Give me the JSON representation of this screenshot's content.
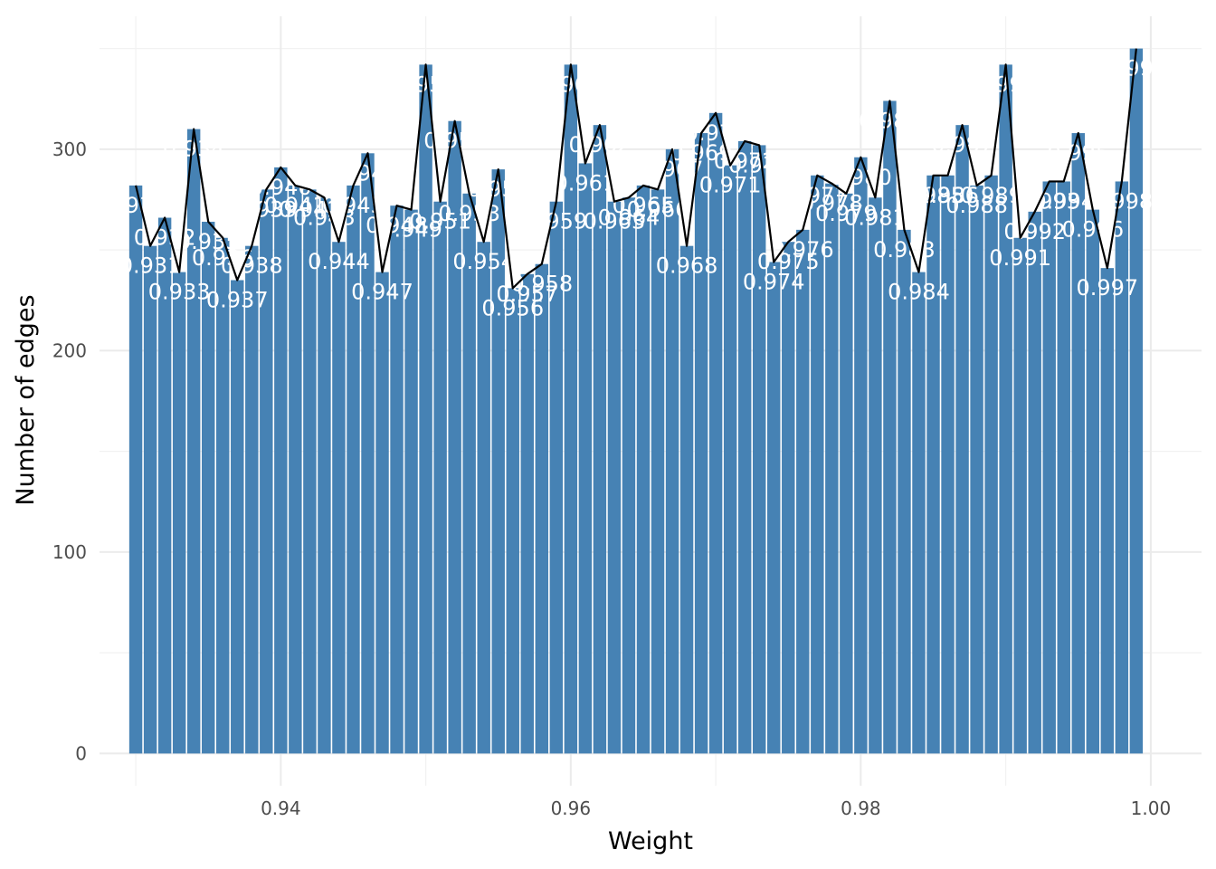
{
  "chart_data": {
    "type": "bar",
    "xlabel": "Weight",
    "ylabel": "Number of edges",
    "xlim": [
      0.9275,
      1.0035
    ],
    "ylim": [
      -16,
      366
    ],
    "x_ticks": [
      0.94,
      0.96,
      0.98,
      1.0
    ],
    "x_tick_labels": [
      "0.94",
      "0.96",
      "0.98",
      "1.00"
    ],
    "y_ticks": [
      0,
      100,
      200,
      300
    ],
    "y_tick_labels": [
      "0",
      "100",
      "200",
      "300"
    ],
    "grid": true,
    "overlay": "line connecting bar tops",
    "bar_color": "#4682b4",
    "line_color": "#000000",
    "x": [
      0.93,
      0.931,
      0.932,
      0.933,
      0.934,
      0.935,
      0.936,
      0.937,
      0.938,
      0.939,
      0.94,
      0.941,
      0.942,
      0.943,
      0.944,
      0.945,
      0.946,
      0.947,
      0.948,
      0.949,
      0.95,
      0.951,
      0.952,
      0.953,
      0.954,
      0.955,
      0.956,
      0.957,
      0.958,
      0.959,
      0.96,
      0.961,
      0.962,
      0.963,
      0.964,
      0.965,
      0.966,
      0.967,
      0.968,
      0.969,
      0.97,
      0.971,
      0.972,
      0.973,
      0.974,
      0.975,
      0.976,
      0.977,
      0.978,
      0.979,
      0.98,
      0.981,
      0.982,
      0.983,
      0.984,
      0.985,
      0.986,
      0.987,
      0.988,
      0.989,
      0.99,
      0.991,
      0.992,
      0.993,
      0.994,
      0.995,
      0.996,
      0.997,
      0.998,
      0.999
    ],
    "values": [
      282,
      252,
      266,
      239,
      310,
      264,
      256,
      235,
      252,
      280,
      291,
      282,
      280,
      276,
      254,
      282,
      298,
      239,
      272,
      270,
      342,
      274,
      314,
      278,
      254,
      290,
      231,
      238,
      243,
      274,
      342,
      293,
      312,
      274,
      276,
      282,
      280,
      300,
      252,
      308,
      318,
      292,
      304,
      302,
      244,
      254,
      260,
      287,
      283,
      278,
      296,
      276,
      324,
      260,
      239,
      287,
      287,
      312,
      282,
      287,
      342,
      256,
      269,
      284,
      284,
      308,
      270,
      241,
      284,
      350
    ]
  }
}
